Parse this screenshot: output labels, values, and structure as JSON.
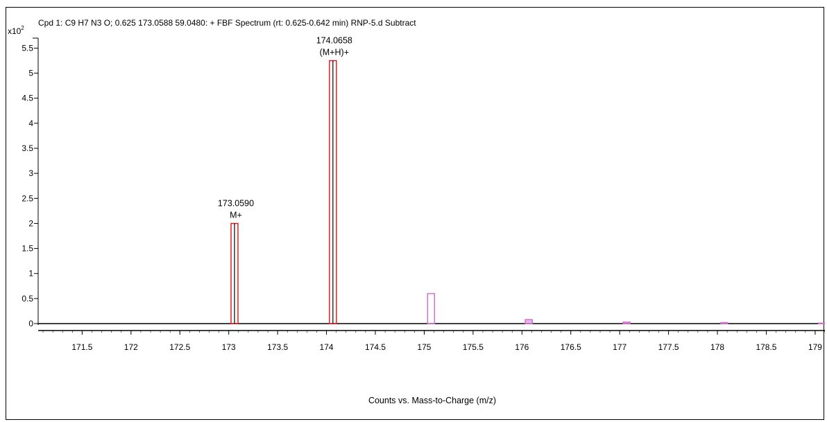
{
  "chart_data": {
    "type": "bar",
    "title": "Cpd 1: C9 H7 N3 O; 0.625 173.0588 59.0480: + FBF Spectrum (rt: 0.625-0.642 min) RNP-5.d  Subtract",
    "y_scale_label": "x10",
    "y_scale_exponent": "2",
    "xlabel": "Counts vs. Mass-to-Charge (m/z)",
    "ylabel": "",
    "xlim": [
      171.05,
      179.1
    ],
    "ylim": [
      0,
      5.7
    ],
    "x_ticks": [
      "171.5",
      "172",
      "172.5",
      "173",
      "173.5",
      "174",
      "174.5",
      "175",
      "175.5",
      "176",
      "176.5",
      "177",
      "177.5",
      "178",
      "178.5",
      "179"
    ],
    "y_ticks": [
      "0",
      "0.5",
      "1",
      "1.5",
      "2",
      "2.5",
      "3",
      "3.5",
      "4",
      "4.5",
      "5",
      "5.5"
    ],
    "grid": false,
    "colors": {
      "labeled_peak": "#e02020",
      "predicted_isotope": "#d070d0",
      "stick": "#000000"
    },
    "peaks": [
      {
        "mz": 173.059,
        "value": 2.0,
        "style": "labeled_peak",
        "labels": [
          "173.0590",
          "M+"
        ]
      },
      {
        "mz": 174.0658,
        "value": 5.25,
        "style": "labeled_peak",
        "labels": [
          "174.0658",
          "(M+H)+"
        ]
      },
      {
        "mz": 175.07,
        "value": 0.6,
        "style": "predicted_isotope",
        "labels": []
      },
      {
        "mz": 176.07,
        "value": 0.08,
        "style": "predicted_isotope",
        "labels": []
      },
      {
        "mz": 177.07,
        "value": 0.03,
        "style": "predicted_isotope",
        "labels": []
      },
      {
        "mz": 178.07,
        "value": 0.02,
        "style": "predicted_isotope",
        "labels": []
      },
      {
        "mz": 179.07,
        "value": 0.01,
        "style": "predicted_isotope",
        "labels": []
      }
    ]
  }
}
